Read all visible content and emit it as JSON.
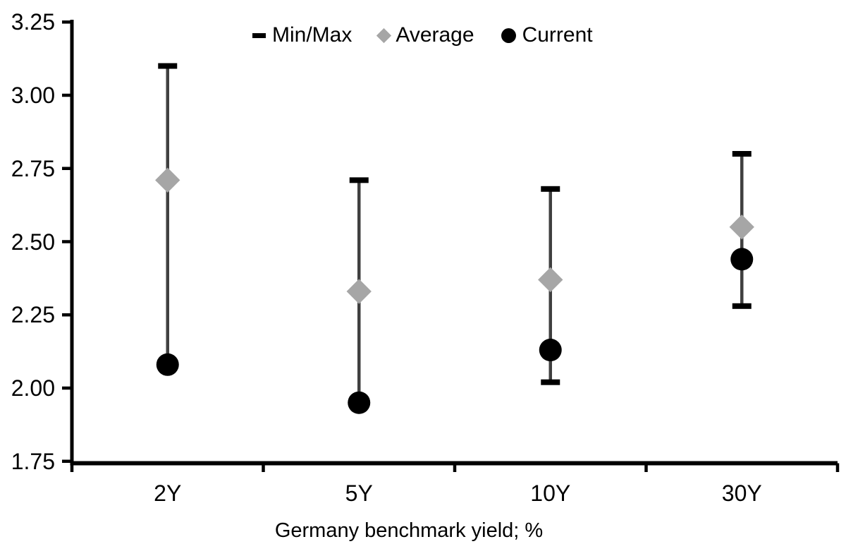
{
  "chart_data": {
    "type": "scatter",
    "subtype": "min-max-range",
    "title": "",
    "xlabel": "Germany benchmark yield; %",
    "ylabel": "",
    "categories": [
      "2Y",
      "5Y",
      "10Y",
      "30Y"
    ],
    "series": [
      {
        "name": "Min/Max",
        "marker": "dash",
        "min": [
          2.08,
          1.95,
          2.02,
          2.28
        ],
        "max": [
          3.1,
          2.71,
          2.68,
          2.8
        ]
      },
      {
        "name": "Average",
        "marker": "diamond",
        "values": [
          2.71,
          2.33,
          2.37,
          2.55
        ]
      },
      {
        "name": "Current",
        "marker": "circle",
        "values": [
          2.08,
          1.95,
          2.13,
          2.44
        ]
      }
    ],
    "ylim": [
      1.75,
      3.25
    ],
    "ytick_step": 0.25,
    "ytick_labels": [
      "3.25",
      "3.00",
      "2.75",
      "2.50",
      "2.25",
      "2.00",
      "1.75"
    ],
    "grid": false,
    "legend_position": "top-center",
    "colors": {
      "axis": "#000000",
      "range_line": "#404040",
      "minmax_cap": "#000000",
      "average_marker": "#a6a6a6",
      "current_marker": "#000000",
      "text": "#000000",
      "background": "#ffffff"
    }
  }
}
